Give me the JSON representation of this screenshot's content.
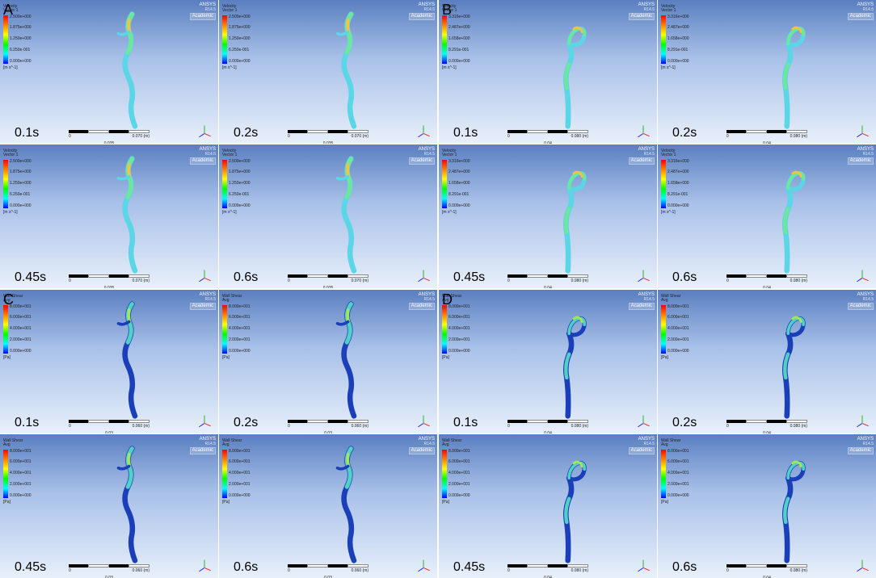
{
  "figure": {
    "quadrants": [
      {
        "label": "A",
        "geometry": "type1",
        "legend": {
          "title_line1": "Velocity",
          "title_line2": "Vector 1",
          "ticks": [
            "2.500e+000",
            "1.875e+000",
            "1.250e+000",
            "6.250e-001",
            "0.000e+000"
          ],
          "unit": "[m s^-1]",
          "colors": [
            "#ff0000",
            "#ff8000",
            "#ffff00",
            "#00ff00",
            "#00ffff",
            "#0000ff"
          ]
        },
        "scalebar": {
          "left": "0",
          "right": "0.070",
          "mid": "0.035",
          "unit": "(m)"
        },
        "panels": [
          {
            "time": "0.1s"
          },
          {
            "time": "0.2s"
          },
          {
            "time": "0.45s"
          },
          {
            "time": "0.6s"
          }
        ]
      },
      {
        "label": "B",
        "geometry": "type2",
        "legend": {
          "title_line1": "Velocity",
          "title_line2": "Vector 1",
          "ticks": [
            "3.316e+000",
            "2.487e+000",
            "1.658e+000",
            "8.291e-001",
            "0.000e+000"
          ],
          "unit": "[m s^-1]",
          "colors": [
            "#ff0000",
            "#ff8000",
            "#ffff00",
            "#00ff00",
            "#00ffff",
            "#0000ff"
          ]
        },
        "scalebar": {
          "left": "0",
          "right": "0.080",
          "mid": "0.04",
          "unit": "(m)"
        },
        "panels": [
          {
            "time": "0.1s"
          },
          {
            "time": "0.2s"
          },
          {
            "time": "0.45s"
          },
          {
            "time": "0.6s"
          }
        ]
      },
      {
        "label": "C",
        "geometry": "type1",
        "legend": {
          "title_line1": "Wall Shear",
          "title_line2": "Avg",
          "ticks": [
            "8.000e+001",
            "6.000e+001",
            "4.000e+001",
            "2.000e+001",
            "0.000e+000"
          ],
          "unit": "[Pa]",
          "colors": [
            "#ff0000",
            "#ff8000",
            "#ffff00",
            "#00ff00",
            "#00ffff",
            "#0000ff"
          ]
        },
        "scalebar": {
          "left": "0",
          "right": "0.060",
          "mid": "0.03",
          "unit": "(m)"
        },
        "panels": [
          {
            "time": "0.1s"
          },
          {
            "time": "0.2s"
          },
          {
            "time": "0.45s"
          },
          {
            "time": "0.6s"
          }
        ]
      },
      {
        "label": "D",
        "geometry": "type2",
        "legend": {
          "title_line1": "Wall Shear",
          "title_line2": "Avg",
          "ticks": [
            "8.000e+001",
            "6.000e+001",
            "4.000e+001",
            "2.000e+001",
            "0.000e+000"
          ],
          "unit": "[Pa]",
          "colors": [
            "#ff0000",
            "#ff8000",
            "#ffff00",
            "#00ff00",
            "#00ffff",
            "#0000ff"
          ]
        },
        "scalebar": {
          "left": "0",
          "right": "0.080",
          "mid": "0.04",
          "unit": "(m)"
        },
        "panels": [
          {
            "time": "0.1s"
          },
          {
            "time": "0.2s"
          },
          {
            "time": "0.45s"
          },
          {
            "time": "0.6s"
          }
        ]
      }
    ],
    "ansys": {
      "brand": "ANSYS",
      "version": "R14.5",
      "note": "Academic"
    },
    "axes": {
      "x_color": "#ff0000",
      "y_color": "#00aa00",
      "z_color": "#0000ff"
    },
    "vessel_colors": {
      "velocity_low": "#5ad6e6",
      "velocity_mid": "#6de89a",
      "velocity_high": "#f5c242",
      "velocity_peak": "#ef3a2d",
      "wss_low": "#1a3fb8",
      "wss_mid": "#4fd1c5",
      "wss_high": "#a4e65a",
      "wss_peak": "#ef3a2d",
      "outline": "#2a4a8a"
    },
    "background_gradient": [
      "#5a7fc0",
      "#a8c0e8",
      "#e8f0fa"
    ]
  }
}
